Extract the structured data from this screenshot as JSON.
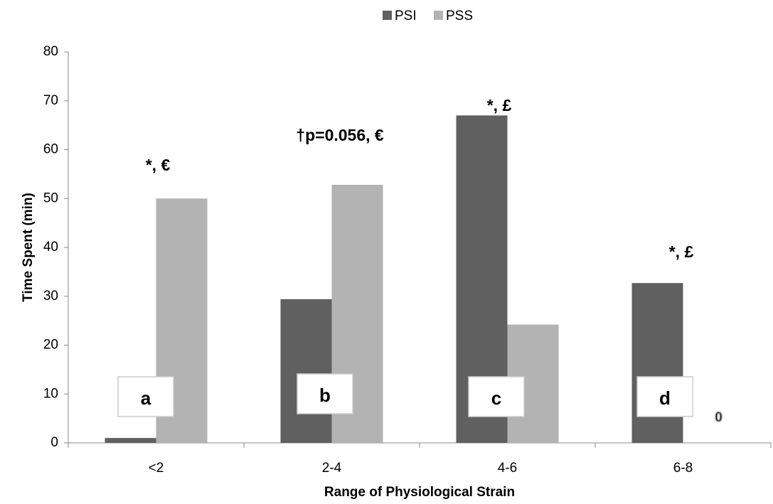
{
  "chart_data": {
    "type": "bar",
    "x_label": "Range of Physiological Strain",
    "y_label": "Time Spent (min)",
    "categories": [
      "<2",
      "2-4",
      "4-6",
      "6-8"
    ],
    "series": [
      {
        "name": "PSI",
        "color": "#606060",
        "values": [
          1.0,
          29.4,
          67.0,
          32.7
        ]
      },
      {
        "name": "PSS",
        "color": "#b3b3b3",
        "values": [
          50.0,
          52.8,
          24.2,
          0
        ]
      }
    ],
    "ylim": [
      0,
      80
    ],
    "yticks": [
      0,
      10,
      20,
      30,
      40,
      50,
      60,
      70,
      80
    ],
    "legend": "top",
    "annotations": [
      "*, €",
      "†p=0.056, €",
      "*, £",
      "*, £"
    ],
    "panel_labels": [
      "a",
      "b",
      "c",
      "d"
    ]
  }
}
